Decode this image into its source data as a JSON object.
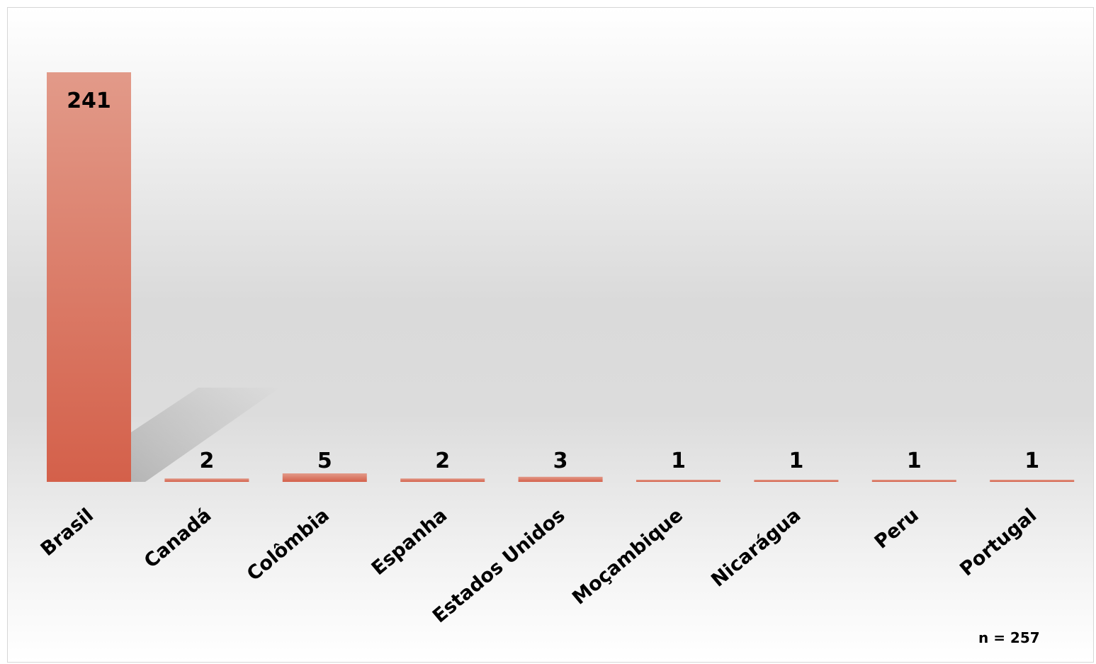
{
  "chart_data": {
    "type": "bar",
    "categories": [
      "Brasil",
      "Canadá",
      "Colômbia",
      "Espanha",
      "Estados Unidos",
      "Moçambique",
      "Nicarágua",
      "Peru",
      "Portugal"
    ],
    "values": [
      241,
      2,
      5,
      2,
      3,
      1,
      1,
      1,
      1
    ],
    "ylim": [
      0,
      241
    ],
    "grid": false,
    "legend": "none",
    "bar_color": "#d9604a",
    "annotation": "n = 257"
  }
}
